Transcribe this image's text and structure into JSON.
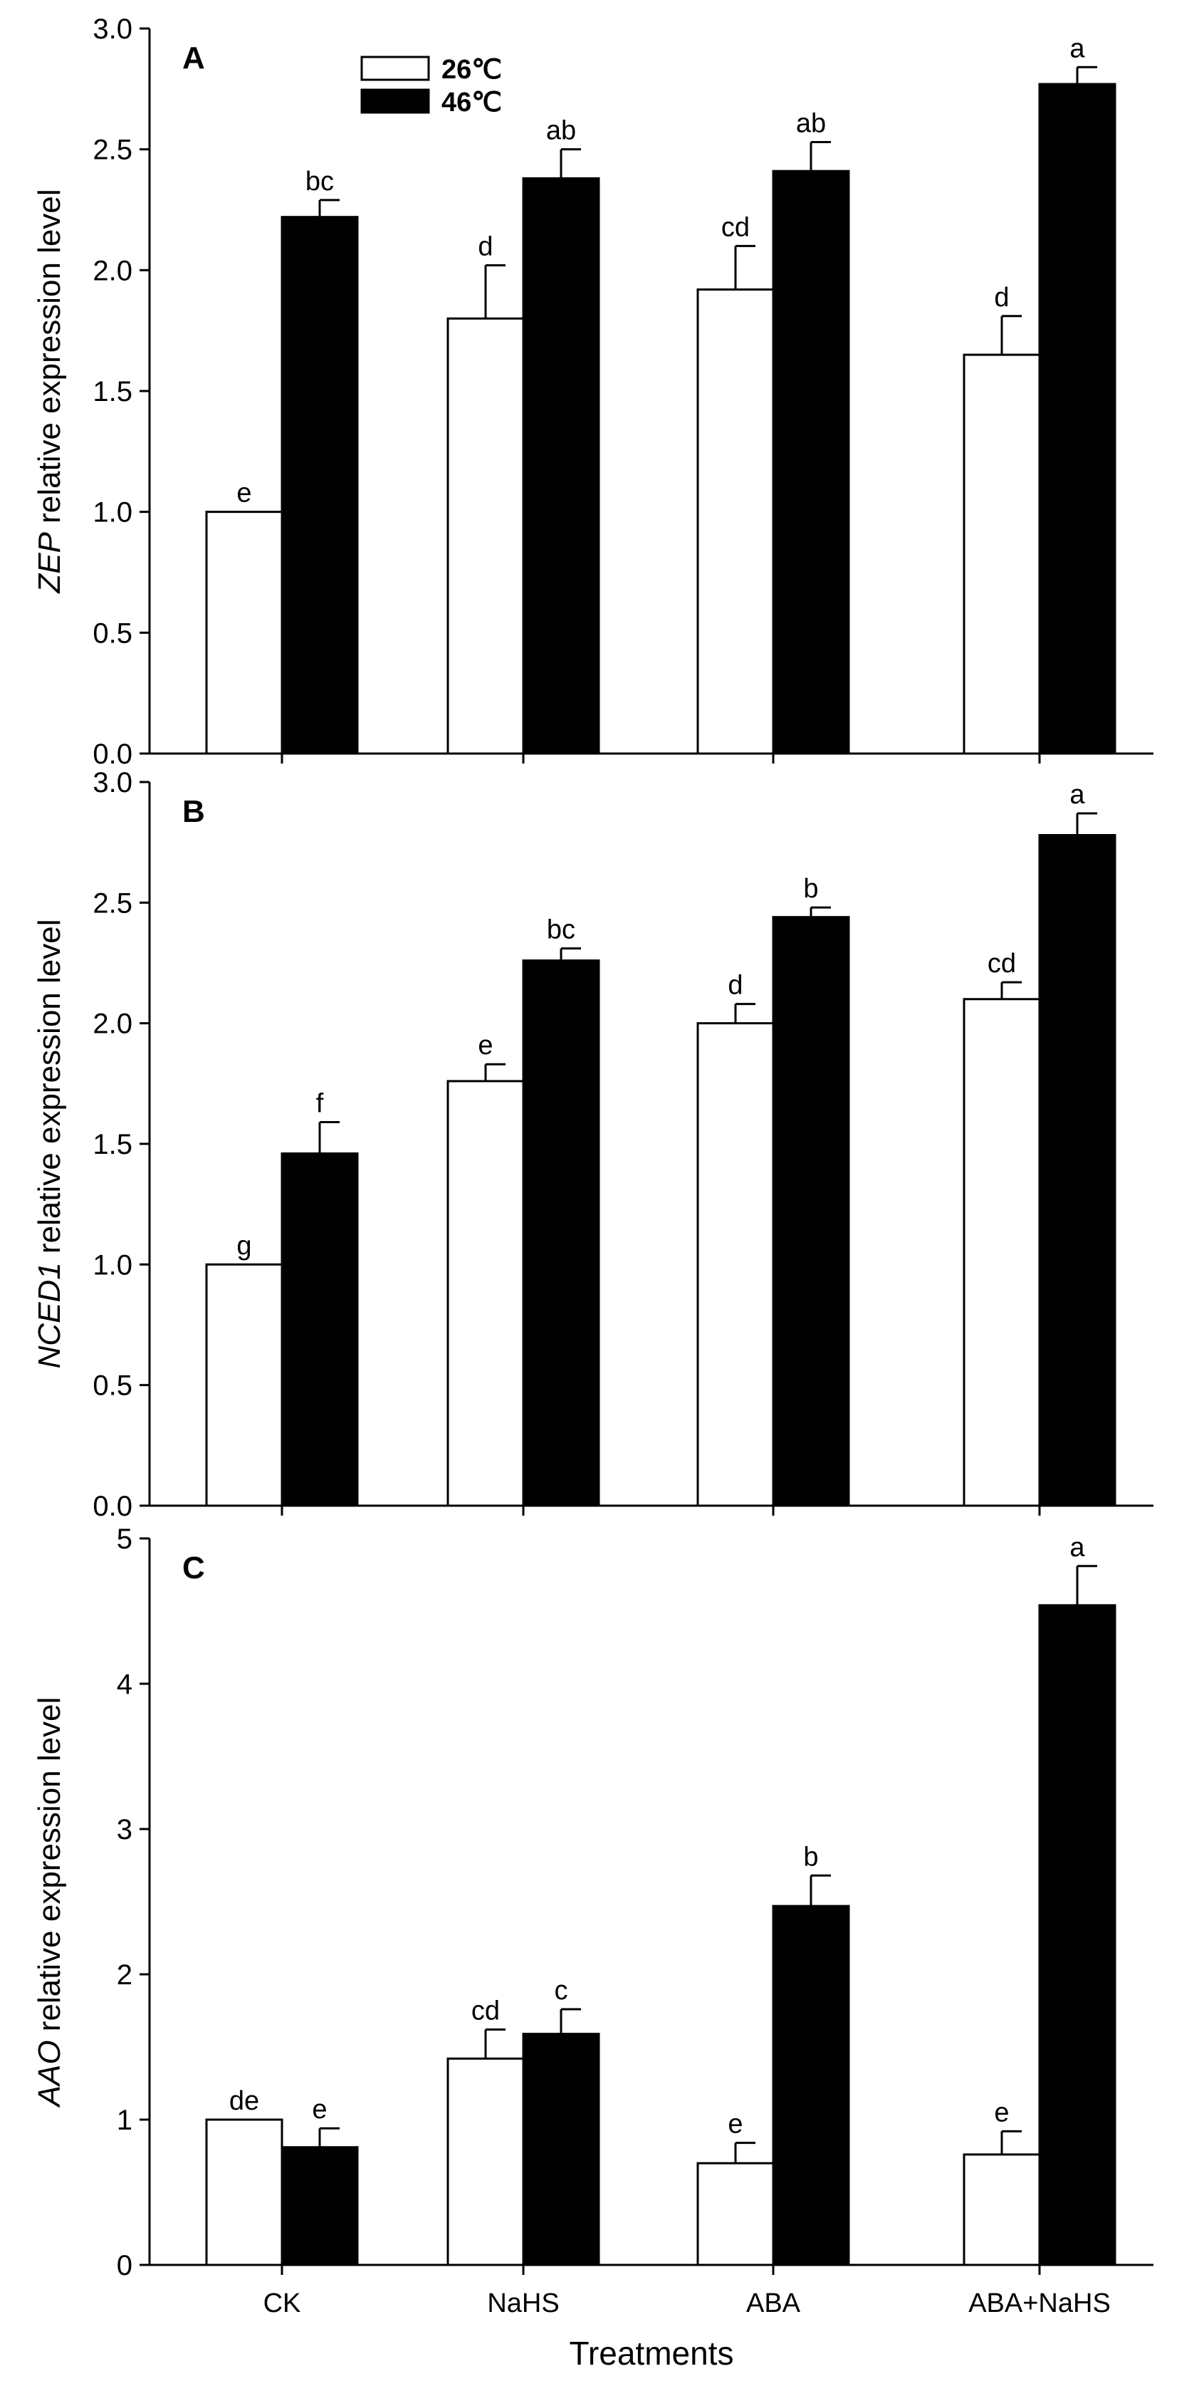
{
  "figure": {
    "xlabel": "Treatments",
    "legend": {
      "placement": "top-left",
      "entries": [
        {
          "name": "26℃",
          "fill": "#ffffff"
        },
        {
          "name": "46℃",
          "fill": "#000000"
        }
      ]
    }
  },
  "colors": {
    "bar_26": "#ffffff",
    "bar_46": "#000000",
    "axis": "#000000"
  },
  "chart_data": [
    {
      "type": "bar",
      "panel": "A",
      "gene": "ZEP",
      "ylabel_rest": " relative expression level",
      "categories": [
        "CK",
        "NaHS",
        "ABA",
        "ABA+NaHS"
      ],
      "ylim": [
        0,
        3.0
      ],
      "ticks": [
        "0.0",
        "0.5",
        "1.0",
        "1.5",
        "2.0",
        "2.5",
        "3.0"
      ],
      "tick_values": [
        0,
        0.5,
        1.0,
        1.5,
        2.0,
        2.5,
        3.0
      ],
      "series": [
        {
          "name": "26℃",
          "values": [
            1.0,
            1.8,
            1.92,
            1.65
          ],
          "errors": [
            0.0,
            0.22,
            0.18,
            0.16
          ],
          "labels": [
            "e",
            "d",
            "cd",
            "d"
          ]
        },
        {
          "name": "46℃",
          "values": [
            2.22,
            2.38,
            2.41,
            2.77
          ],
          "errors": [
            0.07,
            0.12,
            0.12,
            0.07
          ],
          "labels": [
            "bc",
            "ab",
            "ab",
            "a"
          ]
        }
      ],
      "show_xticklabels": false
    },
    {
      "type": "bar",
      "panel": "B",
      "gene": "NCED1",
      "ylabel_rest": " relative expression level",
      "categories": [
        "CK",
        "NaHS",
        "ABA",
        "ABA+NaHS"
      ],
      "ylim": [
        0,
        3.0
      ],
      "ticks": [
        "0.0",
        "0.5",
        "1.0",
        "1.5",
        "2.0",
        "2.5",
        "3.0"
      ],
      "tick_values": [
        0,
        0.5,
        1.0,
        1.5,
        2.0,
        2.5,
        3.0
      ],
      "series": [
        {
          "name": "26℃",
          "values": [
            1.0,
            1.76,
            2.0,
            2.1
          ],
          "errors": [
            0.0,
            0.07,
            0.08,
            0.07
          ],
          "labels": [
            "g",
            "e",
            "d",
            "cd"
          ]
        },
        {
          "name": "46℃",
          "values": [
            1.46,
            2.26,
            2.44,
            2.78
          ],
          "errors": [
            0.13,
            0.05,
            0.04,
            0.09
          ],
          "labels": [
            "f",
            "bc",
            "b",
            "a"
          ]
        }
      ],
      "show_xticklabels": false
    },
    {
      "type": "bar",
      "panel": "C",
      "gene": "AAO",
      "ylabel_rest": " relative expression level",
      "categories": [
        "CK",
        "NaHS",
        "ABA",
        "ABA+NaHS"
      ],
      "ylim": [
        0,
        5
      ],
      "ticks": [
        "0",
        "1",
        "2",
        "3",
        "4",
        "5"
      ],
      "tick_values": [
        0,
        1,
        2,
        3,
        4,
        5
      ],
      "series": [
        {
          "name": "26℃",
          "values": [
            1.0,
            1.42,
            0.7,
            0.76
          ],
          "errors": [
            0.0,
            0.2,
            0.14,
            0.16
          ],
          "labels": [
            "de",
            "cd",
            "e",
            "e"
          ]
        },
        {
          "name": "46℃",
          "values": [
            0.81,
            1.59,
            2.47,
            4.54
          ],
          "errors": [
            0.13,
            0.17,
            0.21,
            0.27
          ],
          "labels": [
            "e",
            "c",
            "b",
            "a"
          ]
        }
      ],
      "show_xticklabels": true
    }
  ]
}
